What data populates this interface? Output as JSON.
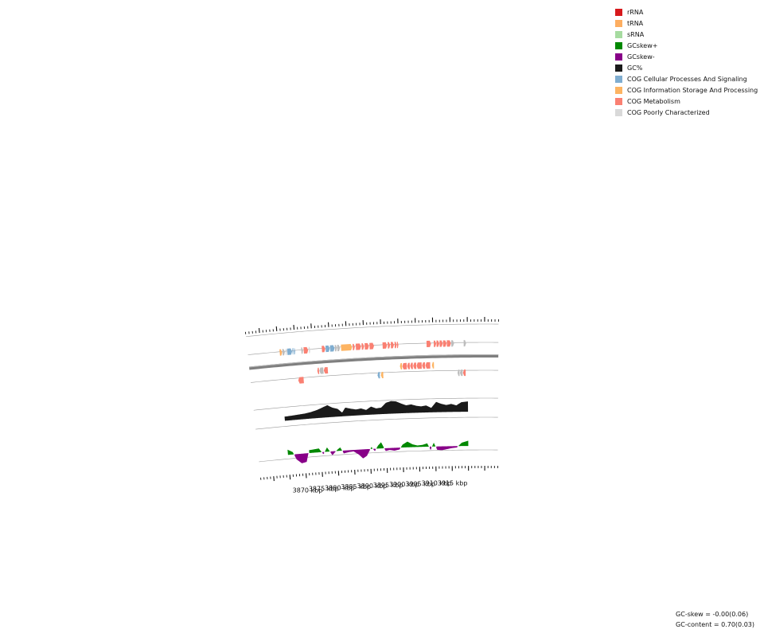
{
  "legend": {
    "items": [
      {
        "label": "rRNA",
        "color": "#d7191c"
      },
      {
        "label": "tRNA",
        "color": "#fdae61"
      },
      {
        "label": "sRNA",
        "color": "#a6dba0"
      },
      {
        "label": "GCskew+",
        "color": "#008800"
      },
      {
        "label": "GCskew-",
        "color": "#880088"
      },
      {
        "label": "GC%",
        "color": "#1a1a1a"
      },
      {
        "label": "COG Cellular Processes And Signaling",
        "color": "#7fadd0"
      },
      {
        "label": "COG Information Storage And Processing",
        "color": "#fdb462"
      },
      {
        "label": "COG Metabolism",
        "color": "#fa8072"
      },
      {
        "label": "COG Poorly Characterized",
        "color": "#d9d9d9"
      }
    ]
  },
  "stats": {
    "gc_skew": "GC-skew = -0.00(0.06)",
    "gc_content": "GC-content = 0.70(0.03)"
  },
  "chart_data": {
    "type": "genome-map",
    "axis_unit": "kbp",
    "kb_range": [
      3865,
      3920
    ],
    "ticks": [
      {
        "kb": 3870,
        "label": "3870 kbp"
      },
      {
        "kb": 3875,
        "label": "3875 kbp"
      },
      {
        "kb": 3880,
        "label": "3880 kbp"
      },
      {
        "kb": 3885,
        "label": "3885 kbp"
      },
      {
        "kb": 3890,
        "label": "3890 kbp"
      },
      {
        "kb": 3895,
        "label": "3895 kbp"
      },
      {
        "kb": 3900,
        "label": "3900 kbp"
      },
      {
        "kb": 3905,
        "label": "3905 kbp"
      },
      {
        "kb": 3910,
        "label": "3910 kbp"
      },
      {
        "kb": 3915,
        "label": "3915 kbp"
      }
    ],
    "genes_forward": [
      {
        "start": 3865.3,
        "end": 3866.0,
        "cat": "tRNA"
      },
      {
        "start": 3866.1,
        "end": 3866.8,
        "cat": "poor"
      },
      {
        "start": 3867.1,
        "end": 3867.3,
        "cat": "poor"
      },
      {
        "start": 3867.5,
        "end": 3868.9,
        "cat": "cellular"
      },
      {
        "start": 3869.0,
        "end": 3869.2,
        "cat": "cellular"
      },
      {
        "start": 3869.3,
        "end": 3869.5,
        "cat": "cellular"
      },
      {
        "start": 3869.6,
        "end": 3869.8,
        "cat": "cellular"
      },
      {
        "start": 3871.6,
        "end": 3872.1,
        "cat": "poor"
      },
      {
        "start": 3872.3,
        "end": 3873.6,
        "cat": "metabolism"
      },
      {
        "start": 3873.8,
        "end": 3874.2,
        "cat": "poorlight"
      },
      {
        "start": 3877.6,
        "end": 3878.6,
        "cat": "metabolism"
      },
      {
        "start": 3878.7,
        "end": 3879.9,
        "cat": "cellular"
      },
      {
        "start": 3880.0,
        "end": 3881.3,
        "cat": "cellular"
      },
      {
        "start": 3881.4,
        "end": 3882.0,
        "cat": "poor"
      },
      {
        "start": 3882.1,
        "end": 3882.9,
        "cat": "poor"
      },
      {
        "start": 3883.2,
        "end": 3886.4,
        "cat": "info"
      },
      {
        "start": 3886.6,
        "end": 3887.2,
        "cat": "metabolism"
      },
      {
        "start": 3887.5,
        "end": 3889.0,
        "cat": "metabolism"
      },
      {
        "start": 3889.2,
        "end": 3889.9,
        "cat": "metabolism"
      },
      {
        "start": 3890.1,
        "end": 3891.3,
        "cat": "metabolism"
      },
      {
        "start": 3891.5,
        "end": 3892.8,
        "cat": "metabolism"
      },
      {
        "start": 3895.3,
        "end": 3896.6,
        "cat": "metabolism"
      },
      {
        "start": 3896.8,
        "end": 3897.5,
        "cat": "metabolism"
      },
      {
        "start": 3897.7,
        "end": 3898.6,
        "cat": "metabolism"
      },
      {
        "start": 3898.8,
        "end": 3899.4,
        "cat": "metabolism"
      },
      {
        "start": 3899.5,
        "end": 3899.9,
        "cat": "metabolism"
      },
      {
        "start": 3908.1,
        "end": 3909.4,
        "cat": "metabolism"
      },
      {
        "start": 3910.2,
        "end": 3910.9,
        "cat": "metabolism"
      },
      {
        "start": 3911.0,
        "end": 3911.8,
        "cat": "metabolism"
      },
      {
        "start": 3911.9,
        "end": 3912.8,
        "cat": "metabolism"
      },
      {
        "start": 3912.9,
        "end": 3913.9,
        "cat": "metabolism"
      },
      {
        "start": 3914.0,
        "end": 3915.2,
        "cat": "metabolism"
      },
      {
        "start": 3915.3,
        "end": 3916.1,
        "cat": "poor"
      },
      {
        "start": 3918.9,
        "end": 3919.6,
        "cat": "poor"
      }
    ],
    "genes_reverse": [
      {
        "start": 3870.0,
        "end": 3871.6,
        "cat": "metabolism"
      },
      {
        "start": 3875.8,
        "end": 3876.3,
        "cat": "metabolism"
      },
      {
        "start": 3876.4,
        "end": 3877.6,
        "cat": "poor"
      },
      {
        "start": 3877.7,
        "end": 3878.9,
        "cat": "metabolism"
      },
      {
        "start": 3893.4,
        "end": 3894.1,
        "cat": "cellular"
      },
      {
        "start": 3894.4,
        "end": 3895.1,
        "cat": "info"
      },
      {
        "start": 3900.1,
        "end": 3900.7,
        "cat": "info"
      },
      {
        "start": 3900.8,
        "end": 3902.1,
        "cat": "metabolism"
      },
      {
        "start": 3902.2,
        "end": 3903.0,
        "cat": "metabolism"
      },
      {
        "start": 3903.1,
        "end": 3903.9,
        "cat": "metabolism"
      },
      {
        "start": 3904.0,
        "end": 3904.9,
        "cat": "metabolism"
      },
      {
        "start": 3905.0,
        "end": 3906.5,
        "cat": "metabolism"
      },
      {
        "start": 3906.6,
        "end": 3907.5,
        "cat": "metabolism"
      },
      {
        "start": 3907.6,
        "end": 3909.0,
        "cat": "metabolism"
      },
      {
        "start": 3909.5,
        "end": 3910.1,
        "cat": "info"
      },
      {
        "start": 3917.0,
        "end": 3917.6,
        "cat": "poor"
      },
      {
        "start": 3917.7,
        "end": 3918.5,
        "cat": "poor"
      },
      {
        "start": 3918.6,
        "end": 3919.4,
        "cat": "metabolism"
      }
    ],
    "gc_content": [
      {
        "kb": 3865.0,
        "v": 0.08
      },
      {
        "kb": 3867.0,
        "v": 0.1
      },
      {
        "kb": 3869.0,
        "v": 0.14
      },
      {
        "kb": 3871.0,
        "v": 0.18
      },
      {
        "kb": 3873.0,
        "v": 0.26
      },
      {
        "kb": 3875.0,
        "v": 0.4
      },
      {
        "kb": 3876.5,
        "v": 0.55
      },
      {
        "kb": 3878.0,
        "v": 0.7
      },
      {
        "kb": 3879.5,
        "v": 0.48
      },
      {
        "kb": 3881.0,
        "v": 0.36
      },
      {
        "kb": 3882.3,
        "v": 0.04
      },
      {
        "kb": 3883.3,
        "v": 0.42
      },
      {
        "kb": 3885.0,
        "v": 0.3
      },
      {
        "kb": 3886.5,
        "v": 0.22
      },
      {
        "kb": 3888.0,
        "v": 0.28
      },
      {
        "kb": 3889.5,
        "v": 0.14
      },
      {
        "kb": 3891.0,
        "v": 0.38
      },
      {
        "kb": 3892.5,
        "v": 0.22
      },
      {
        "kb": 3894.0,
        "v": 0.26
      },
      {
        "kb": 3895.5,
        "v": 0.62
      },
      {
        "kb": 3897.0,
        "v": 0.74
      },
      {
        "kb": 3898.5,
        "v": 0.7
      },
      {
        "kb": 3900.0,
        "v": 0.52
      },
      {
        "kb": 3901.5,
        "v": 0.36
      },
      {
        "kb": 3903.0,
        "v": 0.42
      },
      {
        "kb": 3904.5,
        "v": 0.3
      },
      {
        "kb": 3906.0,
        "v": 0.24
      },
      {
        "kb": 3907.5,
        "v": 0.3
      },
      {
        "kb": 3909.0,
        "v": 0.1
      },
      {
        "kb": 3910.5,
        "v": 0.56
      },
      {
        "kb": 3912.0,
        "v": 0.4
      },
      {
        "kb": 3913.5,
        "v": 0.3
      },
      {
        "kb": 3915.0,
        "v": 0.38
      },
      {
        "kb": 3916.5,
        "v": 0.26
      },
      {
        "kb": 3918.0,
        "v": 0.5
      },
      {
        "kb": 3920.0,
        "v": 0.56
      }
    ],
    "gc_skew": [
      {
        "kb": 3865.0,
        "v": 0.55
      },
      {
        "kb": 3866.5,
        "v": 0.25
      },
      {
        "kb": 3867.5,
        "v": -0.55
      },
      {
        "kb": 3869.0,
        "v": -1.0
      },
      {
        "kb": 3870.5,
        "v": -0.9
      },
      {
        "kb": 3871.5,
        "v": 0.3
      },
      {
        "kb": 3873.0,
        "v": 0.35
      },
      {
        "kb": 3874.5,
        "v": 0.4
      },
      {
        "kb": 3875.8,
        "v": -0.25
      },
      {
        "kb": 3877.0,
        "v": 0.45
      },
      {
        "kb": 3878.5,
        "v": -0.4
      },
      {
        "kb": 3880.0,
        "v": 0.1
      },
      {
        "kb": 3881.0,
        "v": 0.35
      },
      {
        "kb": 3882.0,
        "v": -0.3
      },
      {
        "kb": 3883.5,
        "v": -0.2
      },
      {
        "kb": 3885.0,
        "v": -0.15
      },
      {
        "kb": 3886.5,
        "v": -0.5
      },
      {
        "kb": 3887.8,
        "v": -0.95
      },
      {
        "kb": 3889.0,
        "v": -0.7
      },
      {
        "kb": 3890.5,
        "v": 0.2
      },
      {
        "kb": 3891.5,
        "v": -0.25
      },
      {
        "kb": 3892.5,
        "v": 0.3
      },
      {
        "kb": 3893.5,
        "v": 0.65
      },
      {
        "kb": 3894.8,
        "v": -0.3
      },
      {
        "kb": 3896.0,
        "v": -0.2
      },
      {
        "kb": 3897.5,
        "v": -0.3
      },
      {
        "kb": 3899.0,
        "v": -0.2
      },
      {
        "kb": 3900.0,
        "v": 0.3
      },
      {
        "kb": 3901.5,
        "v": 0.6
      },
      {
        "kb": 3903.0,
        "v": 0.3
      },
      {
        "kb": 3904.5,
        "v": 0.15
      },
      {
        "kb": 3906.0,
        "v": 0.2
      },
      {
        "kb": 3907.5,
        "v": 0.35
      },
      {
        "kb": 3908.5,
        "v": -0.35
      },
      {
        "kb": 3909.5,
        "v": 0.4
      },
      {
        "kb": 3910.5,
        "v": -0.35
      },
      {
        "kb": 3912.0,
        "v": -0.4
      },
      {
        "kb": 3913.5,
        "v": -0.3
      },
      {
        "kb": 3915.0,
        "v": -0.2
      },
      {
        "kb": 3916.5,
        "v": -0.15
      },
      {
        "kb": 3918.0,
        "v": 0.35
      },
      {
        "kb": 3920.0,
        "v": 0.55
      }
    ],
    "colors": {
      "metabolism": "#fa8072",
      "cellular": "#7fadd0",
      "info": "#fdb462",
      "poor": "#bdbdbd",
      "poorlight": "#d9d9d9",
      "tRNA": "#fdae61",
      "gc": "#1a1a1a",
      "skew_pos": "#008800",
      "skew_neg": "#880088",
      "backbone": "#7f7f7f"
    }
  }
}
